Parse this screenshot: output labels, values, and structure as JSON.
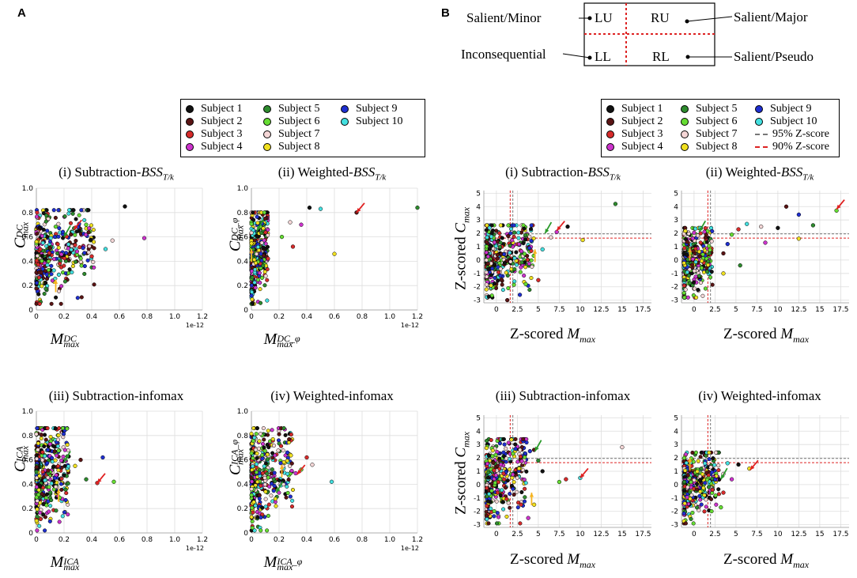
{
  "panel_labels": {
    "a": "A",
    "b": "B"
  },
  "diagram": {
    "quadrants": {
      "lu": "LU",
      "ru": "RU",
      "ll": "LL",
      "rl": "RL"
    },
    "callouts": {
      "lu": "Salient/Minor",
      "ru": "Salient/Major",
      "ll": "Inconsequential",
      "rl": "Salient/Pseudo"
    }
  },
  "colors": {
    "subject_1": "#111111",
    "subject_2": "#5a1414",
    "subject_3": "#d62b2b",
    "subject_4": "#cc33cc",
    "subject_5": "#2e8b2e",
    "subject_6": "#66dd33",
    "subject_7": "#f4d6d6",
    "subject_8": "#f0e020",
    "subject_9": "#1f2fd0",
    "subject_10": "#44e0e0",
    "z95": "#777777",
    "z90": "#dd2222",
    "arrow_red": "#e02020",
    "arrow_green": "#2a9a2a",
    "arrow_orange": "#f5b320"
  },
  "legend_a": {
    "entries": [
      "Subject 1",
      "Subject 2",
      "Subject 3",
      "Subject 4",
      "Subject 5",
      "Subject 6",
      "Subject 7",
      "Subject 8",
      "Subject 9",
      "Subject 10"
    ]
  },
  "legend_b": {
    "entries": [
      "Subject 1",
      "Subject 2",
      "Subject 3",
      "Subject 4",
      "Subject 5",
      "Subject 6",
      "Subject 7",
      "Subject 8",
      "Subject 9",
      "Subject 10"
    ],
    "lines": [
      "95% Z-score",
      "90% Z-score"
    ]
  },
  "chart_data": [
    {
      "id": "a1",
      "type": "scatter",
      "title_pre": "(i) Subtraction-",
      "title_var": "BSS",
      "title_sub": "T/k",
      "ylabel": {
        "base": "C",
        "sub": "max",
        "sup": "DC"
      },
      "xlabel": {
        "base": "M",
        "sub": "max",
        "sup": "DC"
      },
      "xlim": [
        0,
        1.2
      ],
      "ylim": [
        0,
        1.0
      ],
      "xticks": [
        "0",
        "0.2",
        "0.4",
        "0.6",
        "0.8",
        "1.0",
        "1.2"
      ],
      "xtick_vals": [
        0,
        0.2,
        0.4,
        0.6,
        0.8,
        1.0,
        1.2
      ],
      "yticks": [
        "0",
        "0.2",
        "0.4",
        "0.6",
        "0.8",
        "1.0"
      ],
      "ytick_vals": [
        0,
        0.2,
        0.4,
        0.6,
        0.8,
        1.0
      ],
      "offset_label": "1e-12",
      "cloud": {
        "x_max": 0.42,
        "y_lo": 0.05,
        "y_hi": 0.82
      },
      "outliers": [
        [
          0.64,
          0.85
        ],
        [
          0.78,
          0.59
        ],
        [
          0.55,
          0.57
        ],
        [
          0.5,
          0.5
        ],
        [
          0.4,
          0.44
        ],
        [
          0.36,
          0.7
        ],
        [
          0.3,
          0.68
        ],
        [
          0.25,
          0.62
        ]
      ],
      "arrows": [
        {
          "color": "arrow_red",
          "x": 0.27,
          "y": 0.66
        },
        {
          "color": "arrow_green",
          "x": 0.2,
          "y": 0.6
        },
        {
          "color": "arrow_orange",
          "x": 0.14,
          "y": 0.25
        }
      ]
    },
    {
      "id": "a2",
      "type": "scatter",
      "title_pre": "(ii) Weighted-",
      "title_var": "BSS",
      "title_sub": "T/k",
      "ylabel": {
        "base": "C",
        "sub": "max",
        "sup": "DC_φ"
      },
      "xlabel": {
        "base": "M",
        "sub": "max",
        "sup": "DC_φ"
      },
      "xlim": [
        0,
        1.2
      ],
      "ylim": [
        0,
        1.0
      ],
      "xticks": [
        "0",
        "0.2",
        "0.4",
        "0.6",
        "0.8",
        "1.0",
        "1.2"
      ],
      "xtick_vals": [
        0,
        0.2,
        0.4,
        0.6,
        0.8,
        1.0,
        1.2
      ],
      "yticks": [
        "0",
        "0.2",
        "0.4",
        "0.6",
        "0.8",
        "1.0"
      ],
      "ytick_vals": [
        0,
        0.2,
        0.4,
        0.6,
        0.8,
        1.0
      ],
      "offset_label": "1e-12",
      "cloud": {
        "x_max": 0.12,
        "y_lo": 0.05,
        "y_hi": 0.8
      },
      "outliers": [
        [
          0.76,
          0.8
        ],
        [
          1.2,
          0.84
        ],
        [
          0.6,
          0.46
        ],
        [
          0.42,
          0.84
        ],
        [
          0.36,
          0.7
        ],
        [
          0.28,
          0.72
        ],
        [
          0.5,
          0.83
        ],
        [
          0.3,
          0.52
        ],
        [
          0.22,
          0.6
        ]
      ],
      "arrows": [
        {
          "color": "arrow_red",
          "x": 0.76,
          "y": 0.8
        },
        {
          "color": "arrow_green",
          "x": 0.04,
          "y": 0.65
        },
        {
          "color": "arrow_orange",
          "x": 0.0,
          "y": 0.5
        }
      ]
    },
    {
      "id": "a3",
      "type": "scatter",
      "title_pre": "(iii) Subtraction-infomax",
      "title_var": "",
      "title_sub": "",
      "ylabel": {
        "base": "C",
        "sub": "max",
        "sup": "ICA"
      },
      "xlabel": {
        "base": "M",
        "sub": "max",
        "sup": "ICA"
      },
      "xlim": [
        0,
        1.2
      ],
      "ylim": [
        0,
        1.0
      ],
      "xticks": [
        "0",
        "0.2",
        "0.4",
        "0.6",
        "0.8",
        "1.0",
        "1.2"
      ],
      "xtick_vals": [
        0,
        0.2,
        0.4,
        0.6,
        0.8,
        1.0,
        1.2
      ],
      "yticks": [
        "0",
        "0.2",
        "0.4",
        "0.6",
        "0.8",
        "1.0"
      ],
      "ytick_vals": [
        0,
        0.2,
        0.4,
        0.6,
        0.8,
        1.0
      ],
      "offset_label": "1e-12",
      "cloud": {
        "x_max": 0.24,
        "y_lo": 0.02,
        "y_hi": 0.86
      },
      "outliers": [
        [
          0.44,
          0.41
        ],
        [
          0.56,
          0.42
        ],
        [
          0.48,
          0.62
        ],
        [
          0.32,
          0.6
        ],
        [
          0.36,
          0.44
        ],
        [
          0.28,
          0.55
        ]
      ],
      "arrows": [
        {
          "color": "arrow_red",
          "x": 0.44,
          "y": 0.41
        },
        {
          "color": "arrow_green",
          "x": 0.2,
          "y": 0.58
        },
        {
          "color": "arrow_orange",
          "x": 0.16,
          "y": 0.36
        }
      ]
    },
    {
      "id": "a4",
      "type": "scatter",
      "title_pre": "(iv) Weighted-infomax",
      "title_var": "",
      "title_sub": "",
      "ylabel": {
        "base": "C",
        "sub": "max",
        "sup": "ICA_φ"
      },
      "xlabel": {
        "base": "M",
        "sub": "max",
        "sup": "ICA_φ"
      },
      "xlim": [
        0,
        1.2
      ],
      "ylim": [
        0,
        1.0
      ],
      "xticks": [
        "0",
        "0.2",
        "0.4",
        "0.6",
        "0.8",
        "1.0",
        "1.2"
      ],
      "xtick_vals": [
        0,
        0.2,
        0.4,
        0.6,
        0.8,
        1.0,
        1.2
      ],
      "yticks": [
        "0",
        "0.2",
        "0.4",
        "0.6",
        "0.8",
        "1.0"
      ],
      "ytick_vals": [
        0,
        0.2,
        0.4,
        0.6,
        0.8,
        1.0
      ],
      "offset_label": "1e-12",
      "cloud": {
        "x_max": 0.3,
        "y_lo": 0.02,
        "y_hi": 0.86
      },
      "outliers": [
        [
          0.32,
          0.49
        ],
        [
          0.44,
          0.56
        ],
        [
          0.58,
          0.42
        ],
        [
          0.4,
          0.62
        ],
        [
          0.36,
          0.52
        ],
        [
          0.26,
          0.66
        ]
      ],
      "arrows": [
        {
          "color": "arrow_red",
          "x": 0.33,
          "y": 0.48
        },
        {
          "color": "arrow_green",
          "x": 0.18,
          "y": 0.33
        },
        {
          "color": "arrow_orange",
          "x": 0.22,
          "y": 0.56
        }
      ]
    },
    {
      "id": "b1",
      "type": "scatter",
      "title_pre": "(i) Subtraction-",
      "title_var": "BSS",
      "title_sub": "T/k",
      "ylabel_text": "Z-scored ",
      "ylabel_var": "C",
      "ylabel_sub": "max",
      "xlabel_text": "Z-scored ",
      "xlabel_var": "M",
      "xlabel_sub": "max",
      "xlim": [
        -1.5,
        18.5
      ],
      "ylim": [
        -3.2,
        5.2
      ],
      "xticks": [
        "0",
        "2.5",
        "5",
        "7.5",
        "10",
        "12.5",
        "15",
        "17.5"
      ],
      "xtick_vals": [
        0,
        2.5,
        5,
        7.5,
        10,
        12.5,
        15,
        17.5
      ],
      "yticks": [
        "-3",
        "-2",
        "-1",
        "0",
        "1",
        "2",
        "3",
        "4",
        "5"
      ],
      "ytick_vals": [
        -3,
        -2,
        -1,
        0,
        1,
        2,
        3,
        4,
        5
      ],
      "z95": 1.96,
      "z90": 1.645,
      "cloud": {
        "x_lo": -1.2,
        "x_max": 4.5,
        "y_lo": -2.8,
        "y_hi": 2.6
      },
      "outliers": [
        [
          14.2,
          4.2
        ],
        [
          10.3,
          1.5
        ],
        [
          8.5,
          2.5
        ],
        [
          7.2,
          2.1
        ],
        [
          6.5,
          1.7
        ],
        [
          5.5,
          0.8
        ],
        [
          5,
          -1.5
        ],
        [
          3.5,
          -1.8
        ],
        [
          2.8,
          -2.6
        ],
        [
          1.3,
          -3.0
        ]
      ],
      "arrows": [
        {
          "color": "arrow_red",
          "x": 7.2,
          "y": 2.2
        },
        {
          "color": "arrow_green",
          "x": 5.8,
          "y": 2.0
        },
        {
          "color": "arrow_orange",
          "x": 4.6,
          "y": 0.8
        }
      ]
    },
    {
      "id": "b2",
      "type": "scatter",
      "title_pre": "(ii) Weighted-",
      "title_var": "BSS",
      "title_sub": "T/k",
      "ylabel_text": "",
      "ylabel_var": "",
      "ylabel_sub": "",
      "xlabel_text": "Z-scored ",
      "xlabel_var": "M",
      "xlabel_sub": "max",
      "xlim": [
        -1.5,
        18.5
      ],
      "ylim": [
        -3.2,
        5.2
      ],
      "xticks": [
        "0",
        "2.5",
        "5",
        "7.5",
        "10",
        "12.5",
        "15",
        "17.5"
      ],
      "xtick_vals": [
        0,
        2.5,
        5,
        7.5,
        10,
        12.5,
        15,
        17.5
      ],
      "yticks": [
        "-3",
        "-2",
        "-1",
        "0",
        "1",
        "2",
        "3",
        "4",
        "5"
      ],
      "ytick_vals": [
        -3,
        -2,
        -1,
        0,
        1,
        2,
        3,
        4,
        5
      ],
      "z95": 1.96,
      "z90": 1.645,
      "cloud": {
        "x_lo": -1.2,
        "x_max": 2.2,
        "y_lo": -2.8,
        "y_hi": 2.4
      },
      "outliers": [
        [
          17,
          3.7
        ],
        [
          12.5,
          3.4
        ],
        [
          11,
          4.0
        ],
        [
          14.2,
          2.6
        ],
        [
          12.5,
          1.6
        ],
        [
          10,
          2.4
        ],
        [
          8.5,
          1.3
        ],
        [
          8,
          2.5
        ],
        [
          6.3,
          2.7
        ],
        [
          5.3,
          2.3
        ],
        [
          4.5,
          1.9
        ],
        [
          4,
          1.2
        ],
        [
          3.5,
          0.5
        ],
        [
          5.5,
          -0.4
        ],
        [
          3.5,
          -1.0
        ]
      ],
      "arrows": [
        {
          "color": "arrow_red",
          "x": 17,
          "y": 3.8
        },
        {
          "color": "arrow_green",
          "x": 0.6,
          "y": 2.1
        },
        {
          "color": "arrow_orange",
          "x": -0.5,
          "y": 0.9
        }
      ]
    },
    {
      "id": "b3",
      "type": "scatter",
      "title_pre": "(iii) Subtraction-infomax",
      "title_var": "",
      "title_sub": "",
      "ylabel_text": "Z-scored ",
      "ylabel_var": "C",
      "ylabel_sub": "max",
      "xlabel_text": "Z-scored ",
      "xlabel_var": "M",
      "xlabel_sub": "max",
      "xlim": [
        -1.5,
        18.5
      ],
      "ylim": [
        -3.2,
        5.2
      ],
      "xticks": [
        "0",
        "2.5",
        "5",
        "7.5",
        "10",
        "12.5",
        "15",
        "17.5"
      ],
      "xtick_vals": [
        0,
        2.5,
        5,
        7.5,
        10,
        12.5,
        15,
        17.5
      ],
      "yticks": [
        "-3",
        "-2",
        "-1",
        "0",
        "1",
        "2",
        "3",
        "4",
        "5"
      ],
      "ytick_vals": [
        -3,
        -2,
        -1,
        0,
        1,
        2,
        3,
        4,
        5
      ],
      "z95": 1.96,
      "z90": 1.645,
      "cloud": {
        "x_lo": -1.2,
        "x_max": 3.6,
        "y_lo": -2.9,
        "y_hi": 3.4
      },
      "outliers": [
        [
          15,
          2.8
        ],
        [
          10,
          0.5
        ],
        [
          8.3,
          0.4
        ],
        [
          7.5,
          0.2
        ],
        [
          4,
          2.5
        ],
        [
          4.5,
          2.6
        ],
        [
          5,
          1.8
        ],
        [
          4.5,
          -1.5
        ],
        [
          5.5,
          1.0
        ],
        [
          3.8,
          -2.5
        ]
      ],
      "arrows": [
        {
          "color": "arrow_red",
          "x": 10,
          "y": 0.5
        },
        {
          "color": "arrow_green",
          "x": 4.6,
          "y": 2.5
        },
        {
          "color": "arrow_orange",
          "x": 4.2,
          "y": -0.6
        }
      ]
    },
    {
      "id": "b4",
      "type": "scatter",
      "title_pre": "(iv) Weighted-infomax",
      "title_var": "",
      "title_sub": "",
      "ylabel_text": "",
      "ylabel_var": "",
      "ylabel_sub": "",
      "xlabel_text": "Z-scored ",
      "xlabel_var": "M",
      "xlabel_sub": "max",
      "xlim": [
        -1.5,
        18.5
      ],
      "ylim": [
        -3.2,
        5.2
      ],
      "xticks": [
        "0",
        "2.5",
        "5",
        "7.5",
        "10",
        "12.5",
        "15",
        "17.5"
      ],
      "xtick_vals": [
        0,
        2.5,
        5,
        7.5,
        10,
        12.5,
        15,
        17.5
      ],
      "yticks": [
        "-3",
        "-2",
        "-1",
        "0",
        "1",
        "2",
        "3",
        "4",
        "5"
      ],
      "ytick_vals": [
        -3,
        -2,
        -1,
        0,
        1,
        2,
        3,
        4,
        5
      ],
      "z95": 1.96,
      "z90": 1.645,
      "cloud": {
        "x_lo": -1.2,
        "x_max": 3.0,
        "y_lo": -2.9,
        "y_hi": 2.4
      },
      "outliers": [
        [
          6.6,
          1.2
        ],
        [
          5.3,
          1.5
        ],
        [
          4.5,
          0.4
        ],
        [
          3.5,
          0.8
        ],
        [
          4,
          1.6
        ],
        [
          3.5,
          -0.6
        ],
        [
          3.2,
          -1.7
        ]
      ],
      "arrows": [
        {
          "color": "arrow_red",
          "x": 6.7,
          "y": 1.1
        },
        {
          "color": "arrow_green",
          "x": 3.2,
          "y": 0.4
        },
        {
          "color": "arrow_orange",
          "x": -0.5,
          "y": 2.0
        }
      ]
    }
  ]
}
